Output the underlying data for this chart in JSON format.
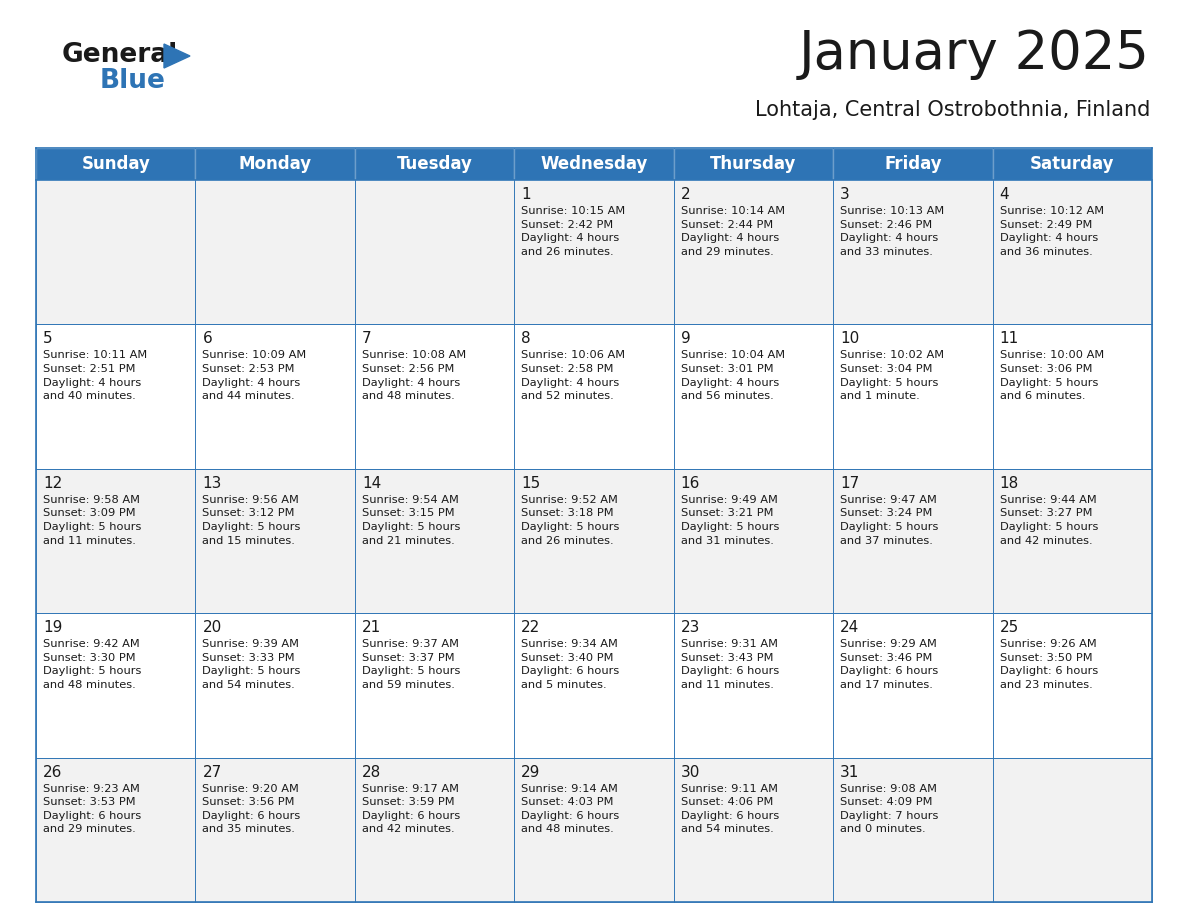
{
  "title": "January 2025",
  "subtitle": "Lohtaja, Central Ostrobothnia, Finland",
  "header_bg": "#2E74B5",
  "header_text_color": "#FFFFFF",
  "cell_bg_odd": "#F2F2F2",
  "cell_bg_even": "#FFFFFF",
  "border_color": "#2E74B5",
  "text_color": "#1a1a1a",
  "day_names": [
    "Sunday",
    "Monday",
    "Tuesday",
    "Wednesday",
    "Thursday",
    "Friday",
    "Saturday"
  ],
  "weeks": [
    [
      {
        "day": null,
        "info": null
      },
      {
        "day": null,
        "info": null
      },
      {
        "day": null,
        "info": null
      },
      {
        "day": 1,
        "info": "Sunrise: 10:15 AM\nSunset: 2:42 PM\nDaylight: 4 hours\nand 26 minutes."
      },
      {
        "day": 2,
        "info": "Sunrise: 10:14 AM\nSunset: 2:44 PM\nDaylight: 4 hours\nand 29 minutes."
      },
      {
        "day": 3,
        "info": "Sunrise: 10:13 AM\nSunset: 2:46 PM\nDaylight: 4 hours\nand 33 minutes."
      },
      {
        "day": 4,
        "info": "Sunrise: 10:12 AM\nSunset: 2:49 PM\nDaylight: 4 hours\nand 36 minutes."
      }
    ],
    [
      {
        "day": 5,
        "info": "Sunrise: 10:11 AM\nSunset: 2:51 PM\nDaylight: 4 hours\nand 40 minutes."
      },
      {
        "day": 6,
        "info": "Sunrise: 10:09 AM\nSunset: 2:53 PM\nDaylight: 4 hours\nand 44 minutes."
      },
      {
        "day": 7,
        "info": "Sunrise: 10:08 AM\nSunset: 2:56 PM\nDaylight: 4 hours\nand 48 minutes."
      },
      {
        "day": 8,
        "info": "Sunrise: 10:06 AM\nSunset: 2:58 PM\nDaylight: 4 hours\nand 52 minutes."
      },
      {
        "day": 9,
        "info": "Sunrise: 10:04 AM\nSunset: 3:01 PM\nDaylight: 4 hours\nand 56 minutes."
      },
      {
        "day": 10,
        "info": "Sunrise: 10:02 AM\nSunset: 3:04 PM\nDaylight: 5 hours\nand 1 minute."
      },
      {
        "day": 11,
        "info": "Sunrise: 10:00 AM\nSunset: 3:06 PM\nDaylight: 5 hours\nand 6 minutes."
      }
    ],
    [
      {
        "day": 12,
        "info": "Sunrise: 9:58 AM\nSunset: 3:09 PM\nDaylight: 5 hours\nand 11 minutes."
      },
      {
        "day": 13,
        "info": "Sunrise: 9:56 AM\nSunset: 3:12 PM\nDaylight: 5 hours\nand 15 minutes."
      },
      {
        "day": 14,
        "info": "Sunrise: 9:54 AM\nSunset: 3:15 PM\nDaylight: 5 hours\nand 21 minutes."
      },
      {
        "day": 15,
        "info": "Sunrise: 9:52 AM\nSunset: 3:18 PM\nDaylight: 5 hours\nand 26 minutes."
      },
      {
        "day": 16,
        "info": "Sunrise: 9:49 AM\nSunset: 3:21 PM\nDaylight: 5 hours\nand 31 minutes."
      },
      {
        "day": 17,
        "info": "Sunrise: 9:47 AM\nSunset: 3:24 PM\nDaylight: 5 hours\nand 37 minutes."
      },
      {
        "day": 18,
        "info": "Sunrise: 9:44 AM\nSunset: 3:27 PM\nDaylight: 5 hours\nand 42 minutes."
      }
    ],
    [
      {
        "day": 19,
        "info": "Sunrise: 9:42 AM\nSunset: 3:30 PM\nDaylight: 5 hours\nand 48 minutes."
      },
      {
        "day": 20,
        "info": "Sunrise: 9:39 AM\nSunset: 3:33 PM\nDaylight: 5 hours\nand 54 minutes."
      },
      {
        "day": 21,
        "info": "Sunrise: 9:37 AM\nSunset: 3:37 PM\nDaylight: 5 hours\nand 59 minutes."
      },
      {
        "day": 22,
        "info": "Sunrise: 9:34 AM\nSunset: 3:40 PM\nDaylight: 6 hours\nand 5 minutes."
      },
      {
        "day": 23,
        "info": "Sunrise: 9:31 AM\nSunset: 3:43 PM\nDaylight: 6 hours\nand 11 minutes."
      },
      {
        "day": 24,
        "info": "Sunrise: 9:29 AM\nSunset: 3:46 PM\nDaylight: 6 hours\nand 17 minutes."
      },
      {
        "day": 25,
        "info": "Sunrise: 9:26 AM\nSunset: 3:50 PM\nDaylight: 6 hours\nand 23 minutes."
      }
    ],
    [
      {
        "day": 26,
        "info": "Sunrise: 9:23 AM\nSunset: 3:53 PM\nDaylight: 6 hours\nand 29 minutes."
      },
      {
        "day": 27,
        "info": "Sunrise: 9:20 AM\nSunset: 3:56 PM\nDaylight: 6 hours\nand 35 minutes."
      },
      {
        "day": 28,
        "info": "Sunrise: 9:17 AM\nSunset: 3:59 PM\nDaylight: 6 hours\nand 42 minutes."
      },
      {
        "day": 29,
        "info": "Sunrise: 9:14 AM\nSunset: 4:03 PM\nDaylight: 6 hours\nand 48 minutes."
      },
      {
        "day": 30,
        "info": "Sunrise: 9:11 AM\nSunset: 4:06 PM\nDaylight: 6 hours\nand 54 minutes."
      },
      {
        "day": 31,
        "info": "Sunrise: 9:08 AM\nSunset: 4:09 PM\nDaylight: 7 hours\nand 0 minutes."
      },
      {
        "day": null,
        "info": null
      }
    ]
  ],
  "logo_general_color": "#1a1a1a",
  "logo_blue_color": "#2E74B5",
  "title_fontsize": 38,
  "subtitle_fontsize": 15,
  "day_header_fontsize": 12,
  "day_num_fontsize": 11,
  "info_fontsize": 8.2
}
